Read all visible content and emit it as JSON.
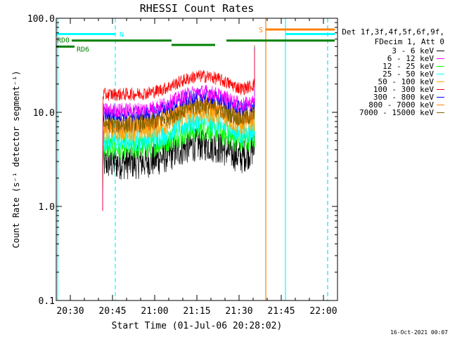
{
  "chart_data": {
    "type": "line",
    "title": "RHESSI Count Rates",
    "xlabel": "Start Time (01-Jul-06 20:28:02)",
    "ylabel": "Count Rate (s⁻¹ detector segment⁻¹)",
    "y_scale": "log",
    "ylim": [
      0.1,
      100
    ],
    "y_ticks": [
      "0.1",
      "1.0",
      "10.0",
      "100.0"
    ],
    "x_unit": "minutes after 20:00 UT",
    "xlim": [
      25,
      125
    ],
    "x_ticks": [
      {
        "v": 30,
        "label": "20:30"
      },
      {
        "v": 45,
        "label": "20:45"
      },
      {
        "v": 60,
        "label": "21:00"
      },
      {
        "v": 75,
        "label": "21:15"
      },
      {
        "v": 90,
        "label": "21:30"
      },
      {
        "v": 105,
        "label": "21:45"
      },
      {
        "v": 120,
        "label": "22:00"
      }
    ],
    "legend_header": [
      "Det 1f,3f,4f,5f,6f,9f,",
      "FDecim 1, Att 0"
    ],
    "legend_position": "right",
    "data_start": 41.5,
    "data_end": 95.5,
    "series": [
      {
        "name": "3 - 6 keV",
        "color": "#000000",
        "base": 2.9,
        "hump": 2.8,
        "end": 4.0,
        "noise": 0.18
      },
      {
        "name": "6 - 12 keV",
        "color": "#ff00ff",
        "base": 10.5,
        "hump": 10.0,
        "end": 12.5,
        "noise": 0.08
      },
      {
        "name": "12 - 25 keV",
        "color": "#00ff00",
        "base": 4.2,
        "hump": 4.0,
        "end": 5.2,
        "noise": 0.13
      },
      {
        "name": "25 - 50 keV",
        "color": "#00ffff",
        "base": 5.0,
        "hump": 4.8,
        "end": 6.2,
        "noise": 0.12
      },
      {
        "name": "50 - 100 keV",
        "color": "#ffa500",
        "base": 6.3,
        "hump": 6.2,
        "end": 7.8,
        "noise": 0.11
      },
      {
        "name": "100 - 300 keV",
        "color": "#ff0000",
        "base": 15.5,
        "hump": 14.5,
        "end": 19.0,
        "noise": 0.07
      },
      {
        "name": "300 - 800 keV",
        "color": "#0000ff",
        "base": 9.5,
        "hump": 9.0,
        "end": 11.5,
        "noise": 0.08
      },
      {
        "name": "800 - 7000 keV",
        "color": "#ff8000",
        "base": 7.5,
        "hump": 7.2,
        "end": 9.2,
        "noise": 0.1
      },
      {
        "name": "7000 - 15000 keV",
        "color": "#806000",
        "base": 7.5,
        "hump": 7.2,
        "end": 9.2,
        "noise": 0.1
      }
    ],
    "peak_spike": {
      "x": 95.5,
      "y": 50
    },
    "flag_bars": [
      {
        "label": "N",
        "color": "#00ffff",
        "y": 68,
        "segments": [
          [
            25,
            46
          ]
        ]
      },
      {
        "label": "",
        "color": "#00ffff",
        "y": 68,
        "segments": [
          [
            106.5,
            124
          ]
        ]
      },
      {
        "label": "S",
        "color": "#ff8000",
        "y": 76,
        "segments": [
          [
            99.5,
            124
          ]
        ]
      },
      {
        "label": "RD0",
        "color": "#008000",
        "y": 58,
        "segments": [
          [
            30.5,
            66
          ],
          [
            85.5,
            124
          ]
        ]
      },
      {
        "label": "",
        "color": "#008000",
        "y": 52,
        "segments": [
          [
            66,
            81.5
          ]
        ]
      },
      {
        "label": "RD6",
        "color": "#008000",
        "y": 50,
        "segments": [
          [
            25,
            31.5
          ]
        ]
      }
    ],
    "vlines": [
      {
        "x": 25.5,
        "color": "#00ffff",
        "style": "solid"
      },
      {
        "x": 46,
        "color": "#00ffff",
        "style": "dashed"
      },
      {
        "x": 99.5,
        "color": "#ff8000",
        "style": "solid"
      },
      {
        "x": 106.5,
        "color": "#00ffff",
        "style": "solid"
      },
      {
        "x": 121.5,
        "color": "#ff8000",
        "style": "dashed"
      },
      {
        "x": 121.5,
        "color": "#00ffff",
        "style": "dashed"
      }
    ]
  },
  "timestamp": "16-Oct-2021 00:07"
}
